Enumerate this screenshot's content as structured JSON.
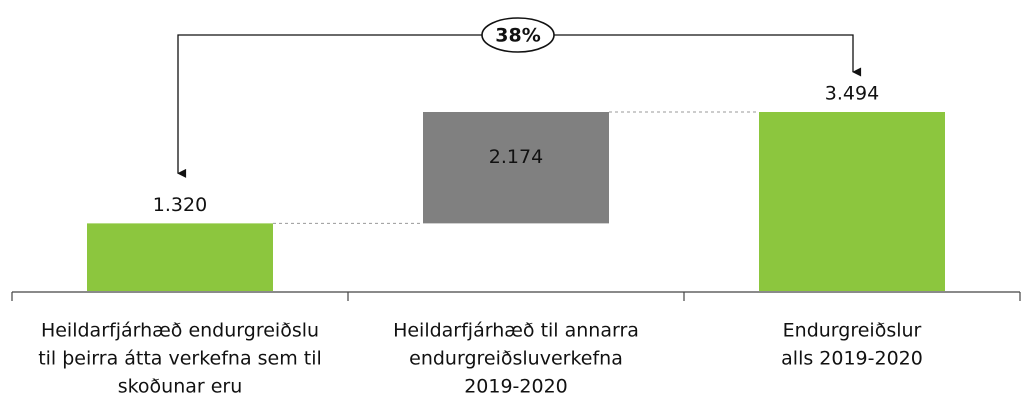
{
  "chart_data": {
    "type": "waterfall",
    "categories": [
      [
        "Heildarfjárhæð endurgreiðslu",
        "til þeirra átta verkefna sem til",
        "skoðunar eru"
      ],
      [
        "Heildarfjárhæð til annarra",
        "endurgreiðsluverkefna",
        "2019-2020"
      ],
      [
        "Endurgreiðslur",
        "alls 2019-2020"
      ]
    ],
    "values": [
      1320,
      2174,
      3494
    ],
    "value_labels": [
      "1.320",
      "2.174",
      "3.494"
    ],
    "measure": [
      "relative",
      "relative",
      "total"
    ],
    "colors": [
      "#8cc63e",
      "#808080",
      "#8cc63e"
    ],
    "annotation": "38%"
  }
}
